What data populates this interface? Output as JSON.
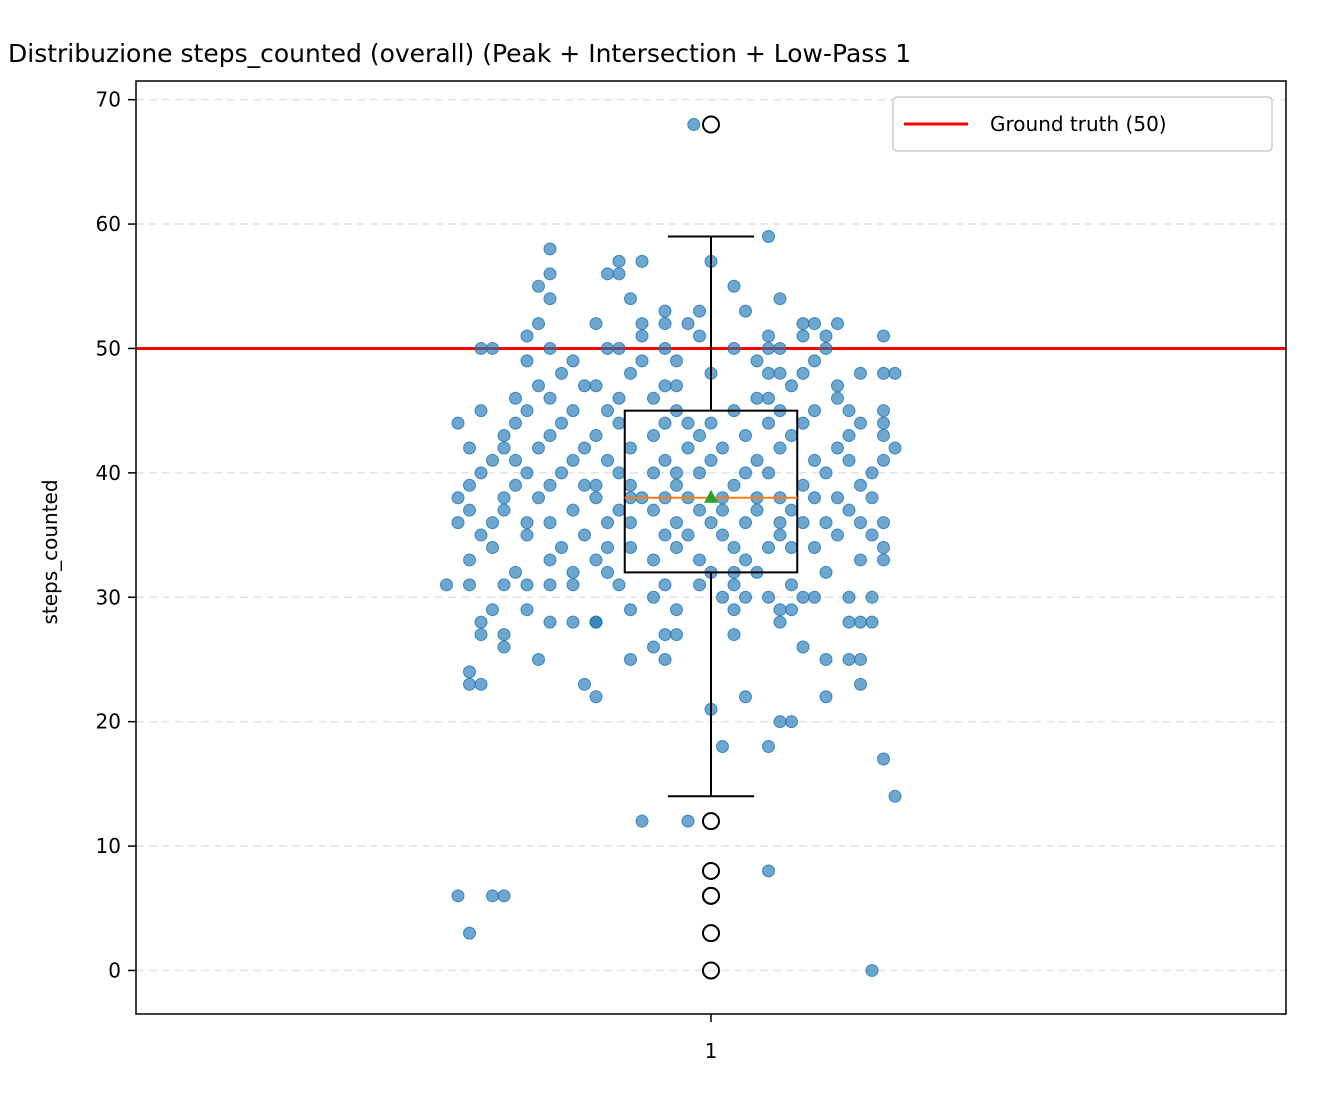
{
  "chart_data": {
    "type": "box",
    "title": "Distribuzione steps_counted (overall) (Peak + Intersection + Low-Pass 1",
    "xlabel": "",
    "ylabel": "steps_counted",
    "x_tick_labels": [
      "1"
    ],
    "ylim": [
      -3.5,
      71.5
    ],
    "y_ticks": [
      0,
      10,
      20,
      30,
      40,
      50,
      60,
      70
    ],
    "grid": "horizontal dashed",
    "legend_position": "top-right",
    "legend": [
      {
        "label": "Ground truth (50)",
        "color": "#ff0000"
      }
    ],
    "reference_line": {
      "y": 50,
      "color": "#ff0000"
    },
    "box": {
      "q1": 32,
      "median": 38,
      "q3": 45,
      "whisker_low": 14,
      "whisker_high": 59,
      "mean": 38,
      "median_color": "#ff7f0e",
      "mean_color": "#2ca02c"
    },
    "outliers": [
      68,
      12,
      8,
      6,
      6,
      3,
      0
    ],
    "points_color": "#1f77b4",
    "points": [
      [
        0.985,
        68
      ],
      [
        1.05,
        59
      ],
      [
        0.98,
        12
      ],
      [
        1.05,
        8
      ],
      [
        0.94,
        12
      ],
      [
        0.81,
        6
      ],
      [
        0.82,
        6
      ],
      [
        0.78,
        6
      ],
      [
        0.79,
        3
      ],
      [
        1.14,
        0
      ],
      [
        1.15,
        17
      ],
      [
        1.16,
        14
      ],
      [
        0.79,
        23
      ],
      [
        0.8,
        23
      ],
      [
        0.79,
        24
      ],
      [
        0.9,
        22
      ],
      [
        0.89,
        23
      ],
      [
        1.03,
        22
      ],
      [
        1.1,
        22
      ],
      [
        1.13,
        23
      ],
      [
        1.06,
        20
      ],
      [
        1.07,
        20
      ],
      [
        1.0,
        21
      ],
      [
        1.01,
        18
      ],
      [
        1.05,
        18
      ],
      [
        0.85,
        25
      ],
      [
        0.93,
        25
      ],
      [
        0.96,
        25
      ],
      [
        1.1,
        25
      ],
      [
        1.12,
        25
      ],
      [
        1.13,
        25
      ],
      [
        0.95,
        26
      ],
      [
        0.82,
        26
      ],
      [
        0.8,
        27
      ],
      [
        0.82,
        27
      ],
      [
        0.96,
        27
      ],
      [
        0.97,
        27
      ],
      [
        1.02,
        27
      ],
      [
        1.08,
        26
      ],
      [
        0.86,
        28
      ],
      [
        0.88,
        28
      ],
      [
        0.9,
        28
      ],
      [
        1.06,
        28
      ],
      [
        1.12,
        28
      ],
      [
        1.13,
        28
      ],
      [
        1.14,
        28
      ],
      [
        0.8,
        28
      ],
      [
        0.81,
        29
      ],
      [
        0.84,
        29
      ],
      [
        0.93,
        29
      ],
      [
        0.97,
        29
      ],
      [
        1.02,
        29
      ],
      [
        1.06,
        29
      ],
      [
        1.07,
        29
      ],
      [
        0.77,
        31
      ],
      [
        0.79,
        31
      ],
      [
        0.82,
        31
      ],
      [
        0.84,
        31
      ],
      [
        0.86,
        31
      ],
      [
        0.88,
        31
      ],
      [
        0.92,
        31
      ],
      [
        0.96,
        31
      ],
      [
        0.99,
        31
      ],
      [
        1.02,
        31
      ],
      [
        1.07,
        31
      ],
      [
        0.95,
        30
      ],
      [
        1.01,
        30
      ],
      [
        1.03,
        30
      ],
      [
        1.05,
        30
      ],
      [
        1.08,
        30
      ],
      [
        1.09,
        30
      ],
      [
        1.12,
        30
      ],
      [
        1.14,
        30
      ],
      [
        0.83,
        32
      ],
      [
        0.88,
        32
      ],
      [
        0.91,
        32
      ],
      [
        1.0,
        32
      ],
      [
        1.02,
        32
      ],
      [
        1.04,
        32
      ],
      [
        1.1,
        32
      ],
      [
        0.79,
        33
      ],
      [
        0.86,
        33
      ],
      [
        0.9,
        33
      ],
      [
        0.95,
        33
      ],
      [
        0.99,
        33
      ],
      [
        1.03,
        33
      ],
      [
        1.13,
        33
      ],
      [
        1.15,
        33
      ],
      [
        0.81,
        34
      ],
      [
        0.87,
        34
      ],
      [
        0.91,
        34
      ],
      [
        0.93,
        34
      ],
      [
        0.97,
        34
      ],
      [
        1.02,
        34
      ],
      [
        1.05,
        34
      ],
      [
        1.07,
        34
      ],
      [
        1.09,
        34
      ],
      [
        1.15,
        34
      ],
      [
        0.8,
        35
      ],
      [
        0.84,
        35
      ],
      [
        0.89,
        35
      ],
      [
        0.96,
        35
      ],
      [
        0.98,
        35
      ],
      [
        1.01,
        35
      ],
      [
        1.06,
        35
      ],
      [
        1.11,
        35
      ],
      [
        1.14,
        35
      ],
      [
        0.78,
        36
      ],
      [
        0.81,
        36
      ],
      [
        0.84,
        36
      ],
      [
        0.86,
        36
      ],
      [
        0.91,
        36
      ],
      [
        0.93,
        36
      ],
      [
        0.97,
        36
      ],
      [
        1.0,
        36
      ],
      [
        1.03,
        36
      ],
      [
        1.06,
        36
      ],
      [
        1.08,
        36
      ],
      [
        1.1,
        36
      ],
      [
        1.13,
        36
      ],
      [
        1.15,
        36
      ],
      [
        0.79,
        37
      ],
      [
        0.82,
        37
      ],
      [
        0.88,
        37
      ],
      [
        0.92,
        37
      ],
      [
        0.95,
        37
      ],
      [
        0.99,
        37
      ],
      [
        1.04,
        37
      ],
      [
        1.07,
        37
      ],
      [
        1.12,
        37
      ],
      [
        0.78,
        38
      ],
      [
        0.82,
        38
      ],
      [
        0.85,
        38
      ],
      [
        0.9,
        38
      ],
      [
        0.94,
        38
      ],
      [
        0.96,
        38
      ],
      [
        0.98,
        38
      ],
      [
        1.01,
        38
      ],
      [
        1.04,
        38
      ],
      [
        1.06,
        38
      ],
      [
        1.09,
        38
      ],
      [
        1.11,
        38
      ],
      [
        1.14,
        38
      ],
      [
        0.79,
        39
      ],
      [
        0.83,
        39
      ],
      [
        0.86,
        39
      ],
      [
        0.89,
        39
      ],
      [
        0.93,
        39
      ],
      [
        0.97,
        39
      ],
      [
        1.02,
        39
      ],
      [
        1.08,
        39
      ],
      [
        1.13,
        39
      ],
      [
        0.8,
        40
      ],
      [
        0.84,
        40
      ],
      [
        0.87,
        40
      ],
      [
        0.92,
        40
      ],
      [
        0.95,
        40
      ],
      [
        0.99,
        40
      ],
      [
        1.03,
        40
      ],
      [
        1.05,
        40
      ],
      [
        1.1,
        40
      ],
      [
        1.14,
        40
      ],
      [
        0.81,
        41
      ],
      [
        0.83,
        41
      ],
      [
        0.88,
        41
      ],
      [
        0.91,
        41
      ],
      [
        0.96,
        41
      ],
      [
        1.0,
        41
      ],
      [
        1.04,
        41
      ],
      [
        1.09,
        41
      ],
      [
        1.12,
        41
      ],
      [
        1.15,
        41
      ],
      [
        0.79,
        42
      ],
      [
        0.85,
        42
      ],
      [
        0.89,
        42
      ],
      [
        0.93,
        42
      ],
      [
        0.98,
        42
      ],
      [
        1.01,
        42
      ],
      [
        1.06,
        42
      ],
      [
        1.11,
        42
      ],
      [
        1.16,
        42
      ],
      [
        0.82,
        43
      ],
      [
        0.86,
        43
      ],
      [
        0.9,
        43
      ],
      [
        0.95,
        43
      ],
      [
        0.99,
        43
      ],
      [
        1.03,
        43
      ],
      [
        1.07,
        43
      ],
      [
        1.12,
        43
      ],
      [
        1.15,
        43
      ],
      [
        0.78,
        44
      ],
      [
        0.83,
        44
      ],
      [
        0.87,
        44
      ],
      [
        0.92,
        44
      ],
      [
        0.96,
        44
      ],
      [
        1.0,
        44
      ],
      [
        1.05,
        44
      ],
      [
        1.08,
        44
      ],
      [
        1.13,
        44
      ],
      [
        1.15,
        44
      ],
      [
        0.8,
        45
      ],
      [
        0.84,
        45
      ],
      [
        0.88,
        45
      ],
      [
        0.91,
        45
      ],
      [
        0.97,
        45
      ],
      [
        1.02,
        45
      ],
      [
        1.06,
        45
      ],
      [
        1.09,
        45
      ],
      [
        1.12,
        45
      ],
      [
        1.15,
        45
      ],
      [
        0.83,
        46
      ],
      [
        0.86,
        46
      ],
      [
        0.92,
        46
      ],
      [
        0.95,
        46
      ],
      [
        1.04,
        46
      ],
      [
        1.05,
        46
      ],
      [
        1.11,
        46
      ],
      [
        0.85,
        47
      ],
      [
        0.89,
        47
      ],
      [
        0.9,
        47
      ],
      [
        0.96,
        47
      ],
      [
        0.97,
        47
      ],
      [
        1.07,
        47
      ],
      [
        1.11,
        47
      ],
      [
        0.87,
        48
      ],
      [
        0.93,
        48
      ],
      [
        1.0,
        48
      ],
      [
        1.05,
        48
      ],
      [
        1.06,
        48
      ],
      [
        1.08,
        48
      ],
      [
        1.13,
        48
      ],
      [
        1.15,
        48
      ],
      [
        1.16,
        48
      ],
      [
        0.84,
        49
      ],
      [
        0.88,
        49
      ],
      [
        0.94,
        49
      ],
      [
        0.97,
        49
      ],
      [
        1.04,
        49
      ],
      [
        1.09,
        49
      ],
      [
        0.81,
        50
      ],
      [
        0.86,
        50
      ],
      [
        0.91,
        50
      ],
      [
        0.92,
        50
      ],
      [
        0.96,
        50
      ],
      [
        1.02,
        50
      ],
      [
        1.05,
        50
      ],
      [
        1.06,
        50
      ],
      [
        1.1,
        50
      ],
      [
        0.84,
        51
      ],
      [
        0.94,
        51
      ],
      [
        0.99,
        51
      ],
      [
        1.05,
        51
      ],
      [
        1.08,
        51
      ],
      [
        1.1,
        51
      ],
      [
        1.15,
        51
      ],
      [
        0.85,
        52
      ],
      [
        0.9,
        52
      ],
      [
        0.94,
        52
      ],
      [
        0.96,
        52
      ],
      [
        0.98,
        52
      ],
      [
        1.08,
        52
      ],
      [
        1.09,
        52
      ],
      [
        1.11,
        52
      ],
      [
        0.96,
        53
      ],
      [
        0.99,
        53
      ],
      [
        1.03,
        53
      ],
      [
        0.86,
        54
      ],
      [
        0.93,
        54
      ],
      [
        1.06,
        54
      ],
      [
        0.85,
        55
      ],
      [
        1.02,
        55
      ],
      [
        0.86,
        56
      ],
      [
        0.91,
        56
      ],
      [
        0.92,
        56
      ],
      [
        0.92,
        57
      ],
      [
        0.94,
        57
      ],
      [
        1.0,
        57
      ],
      [
        0.86,
        58
      ],
      [
        0.8,
        50
      ],
      [
        0.9,
        39
      ],
      [
        0.93,
        38
      ],
      [
        1.01,
        37
      ],
      [
        0.82,
        42
      ],
      [
        0.98,
        44
      ],
      [
        0.9,
        28
      ],
      [
        0.97,
        40
      ]
    ]
  }
}
